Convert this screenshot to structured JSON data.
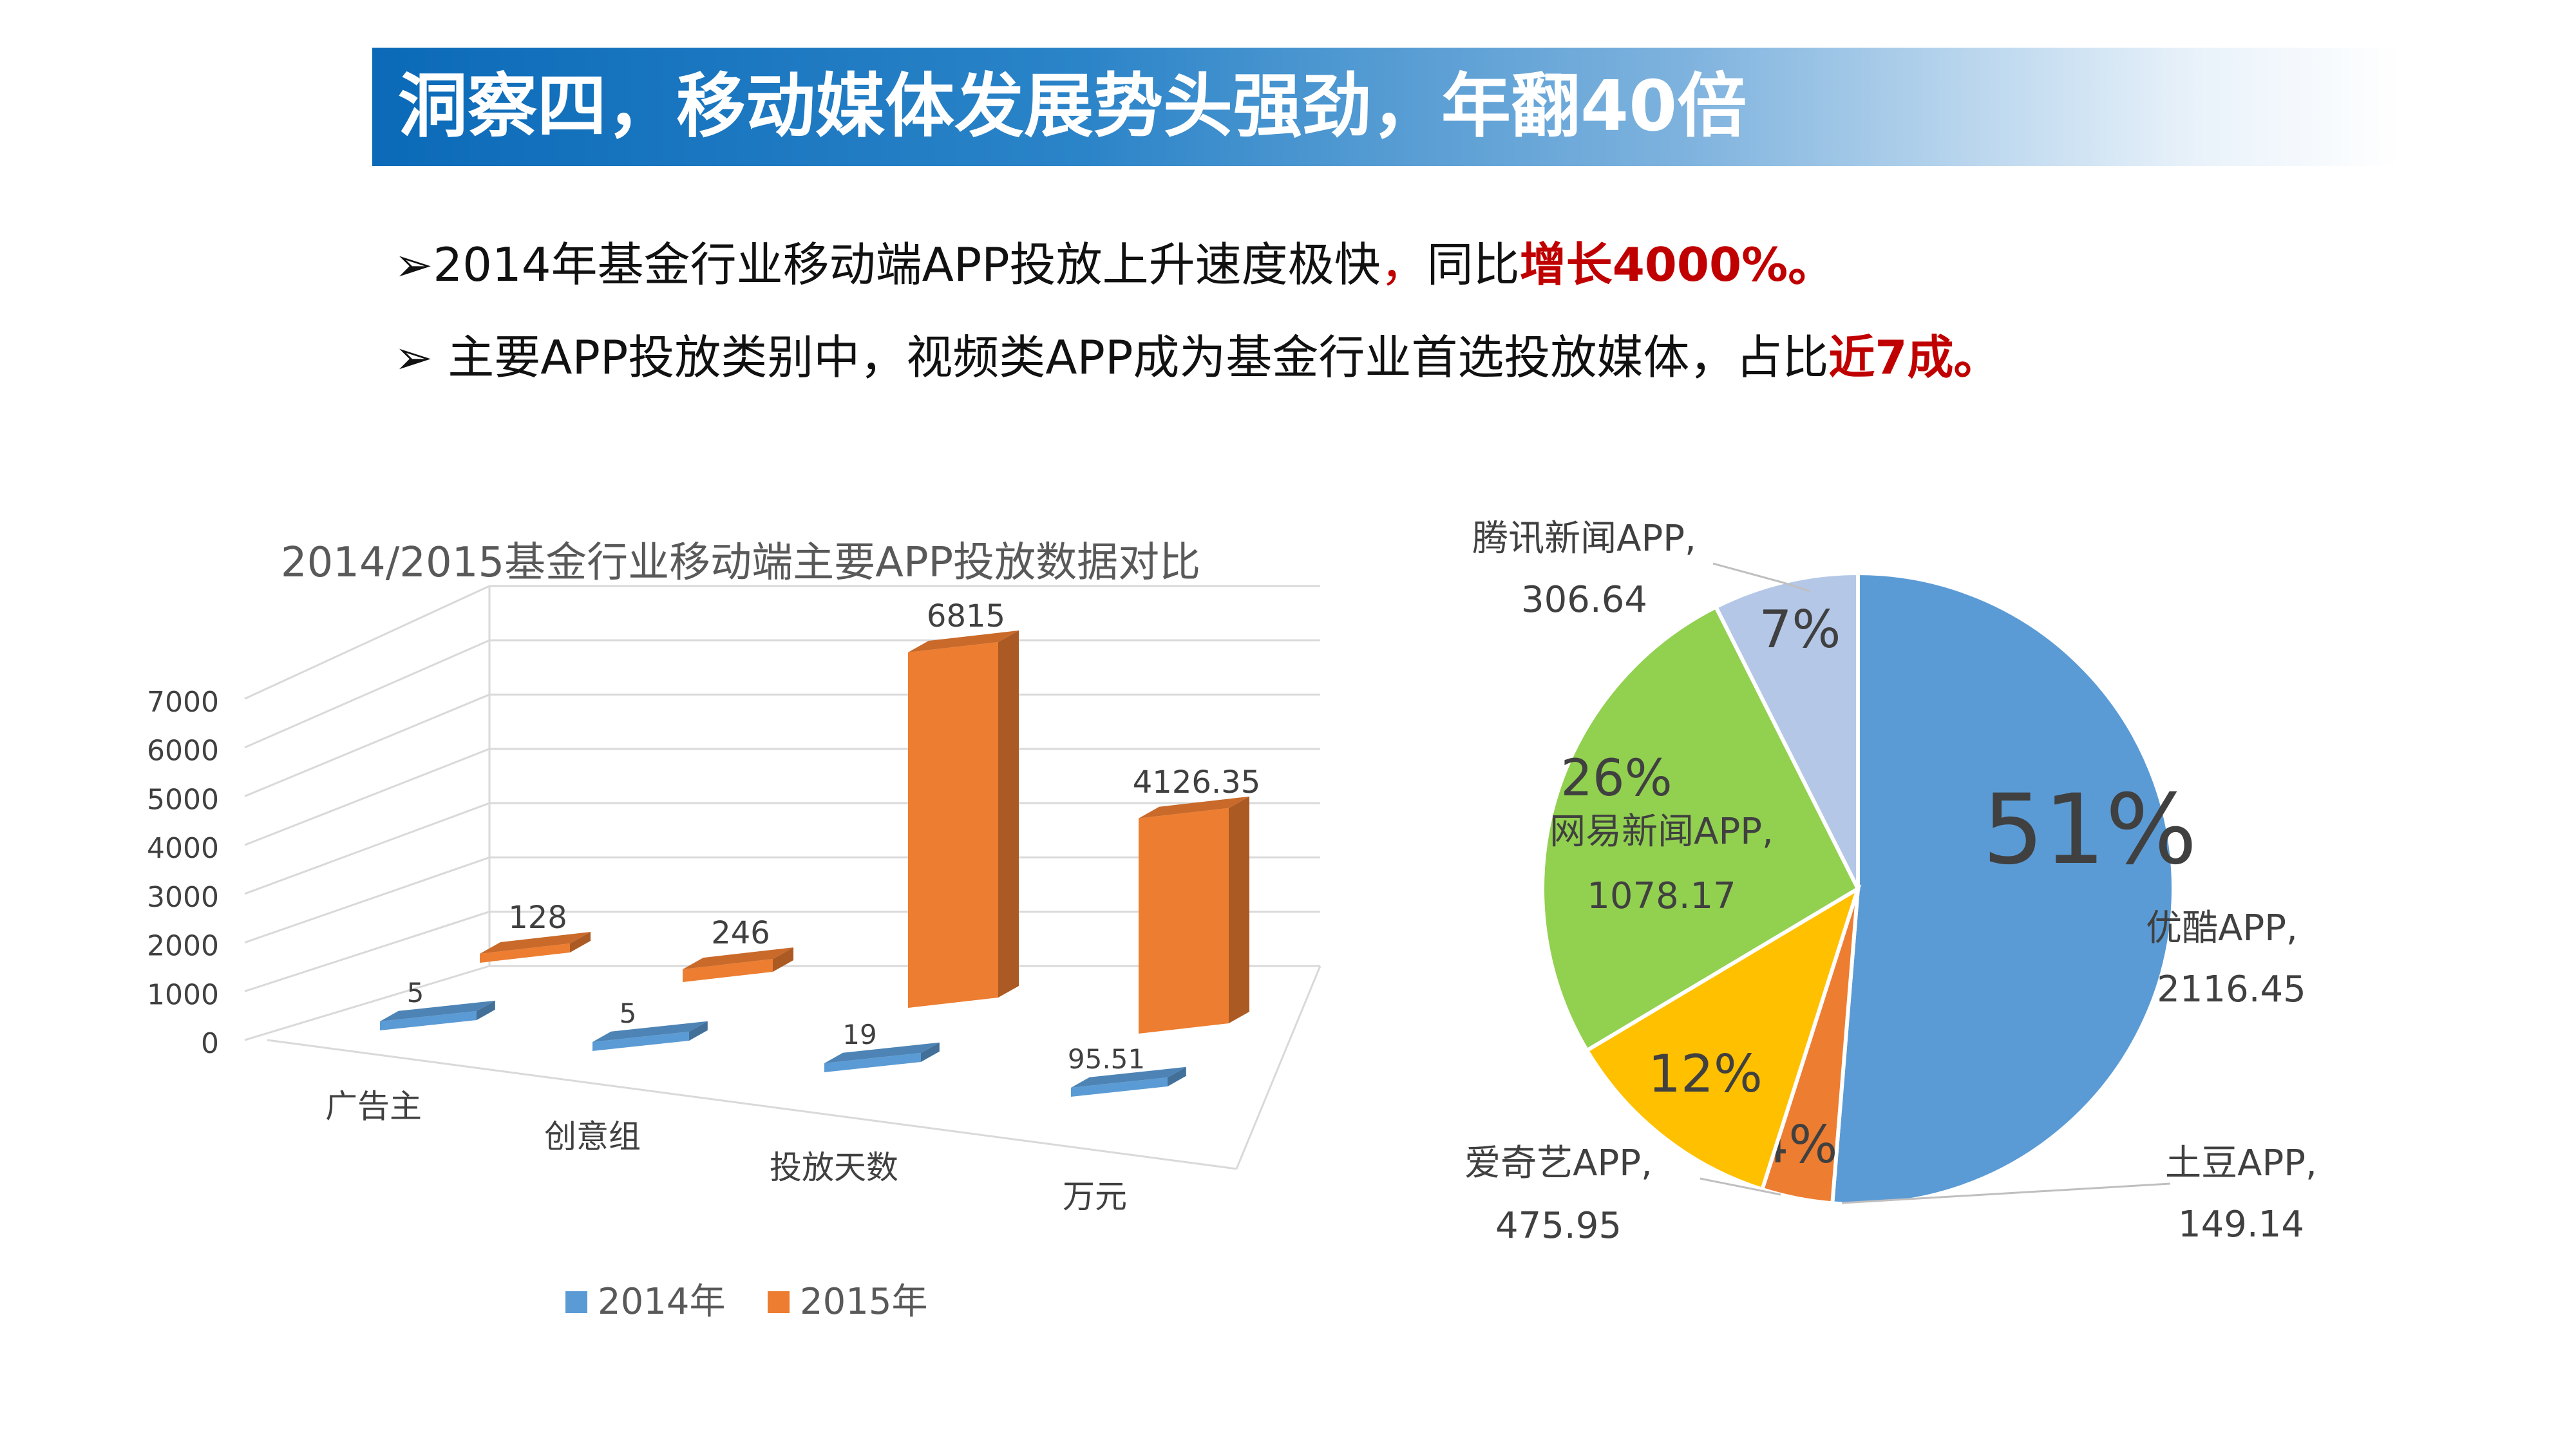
{
  "header": {
    "title": "洞察四，移动媒体发展势头强劲，年翻40倍"
  },
  "bullets": [
    {
      "marker": "➢",
      "text": "2014年基金行业移动端APP投放上升速度极快",
      "comma": "，",
      "tail": "同比",
      "highlight": "增长4000%。"
    },
    {
      "marker": "➢",
      "text": " 主要APP投放类别中，视频类APP成为基金行业首选投放媒体，占比",
      "comma": "",
      "tail": "",
      "highlight": "近7成。"
    }
  ],
  "colors": {
    "blue": "#5b9bd5",
    "orange": "#ed7d31",
    "green": "#92d050",
    "yellow": "#ffc000",
    "lightblue": "#b4c7e7",
    "highlight": "#c00000"
  },
  "chart_data": [
    {
      "type": "bar",
      "title": "2014/2015基金行业移动端主要APP投放数据对比",
      "categories": [
        "广告主",
        "创意组",
        "投放天数",
        "万元"
      ],
      "series": [
        {
          "name": "2014年",
          "values": [
            5,
            5,
            19,
            95.51
          ],
          "labels": [
            "5",
            "5",
            "19",
            "95.51"
          ]
        },
        {
          "name": "2015年",
          "values": [
            128,
            246,
            6815,
            4126.35
          ],
          "labels": [
            "128",
            "246",
            "6815",
            "4126.35"
          ]
        }
      ],
      "yticks": [
        "0",
        "1000",
        "2000",
        "3000",
        "4000",
        "5000",
        "6000",
        "7000"
      ],
      "ylim": [
        0,
        7000
      ],
      "grid": true,
      "legend_position": "bottom"
    },
    {
      "type": "pie",
      "slices": [
        {
          "name": "优酷APP,",
          "value": 2116.45,
          "value_label": "2116.45",
          "percent": "51%",
          "color": "#5b9bd5"
        },
        {
          "name": "土豆APP,",
          "value": 149.14,
          "value_label": "149.14",
          "percent": "4%",
          "color": "#ed7d31"
        },
        {
          "name": "爱奇艺APP,",
          "value": 475.95,
          "value_label": "475.95",
          "percent": "12%",
          "color": "#ffc000"
        },
        {
          "name": "网易新闻APP,",
          "value": 1078.17,
          "value_label": "1078.17",
          "percent": "26%",
          "color": "#92d050"
        },
        {
          "name": "腾讯新闻APP,",
          "value": 306.64,
          "value_label": "306.64",
          "percent": "7%",
          "color": "#b4c7e7"
        }
      ]
    }
  ]
}
